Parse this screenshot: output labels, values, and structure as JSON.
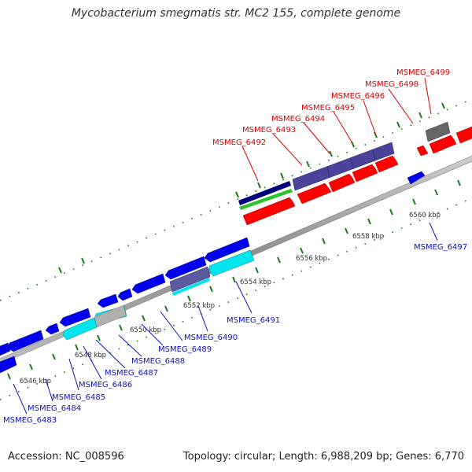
{
  "title": "Mycobacterium smegmatis str. MC2 155, complete genome",
  "accession": "Accession: NC_008596",
  "topology": "Topology: circular; Length: 6,988,209 bp; Genes: 6,770",
  "colors": {
    "forward_gene": "#ff0000",
    "reverse_gene": "#0000ee",
    "operon_forward": "#4b4399",
    "operon_reverse": "#5a5aa0",
    "cyan_gene": "#00e5ee",
    "grey_gene": "#b0b0b0",
    "dark_grey_gene": "#666666",
    "green_gene": "#2ec12e",
    "navy_gene": "#00007a",
    "backbone": "#9a9a9a",
    "ticks": "#1a7a1a"
  },
  "scale_labels": [
    "6546 kbp",
    "6548 kbp",
    "6550 kbp",
    "6552 kbp",
    "6554 kbp",
    "6556 kbp",
    "6558 kbp",
    "6560 kbp"
  ],
  "forward_labels": [
    "MSMEG_6492",
    "MSMEG_6493",
    "MSMEG_6494",
    "MSMEG_6495",
    "MSMEG_6496",
    "MSMEG_6498",
    "MSMEG_6499"
  ],
  "reverse_labels": [
    "MSMEG_6483",
    "MSMEG_6484",
    "MSMEG_6485",
    "MSMEG_6486",
    "MSMEG_6487",
    "MSMEG_6488",
    "MSMEG_6489",
    "MSMEG_6490",
    "MSMEG_6491",
    "MSMEG_6497"
  ]
}
